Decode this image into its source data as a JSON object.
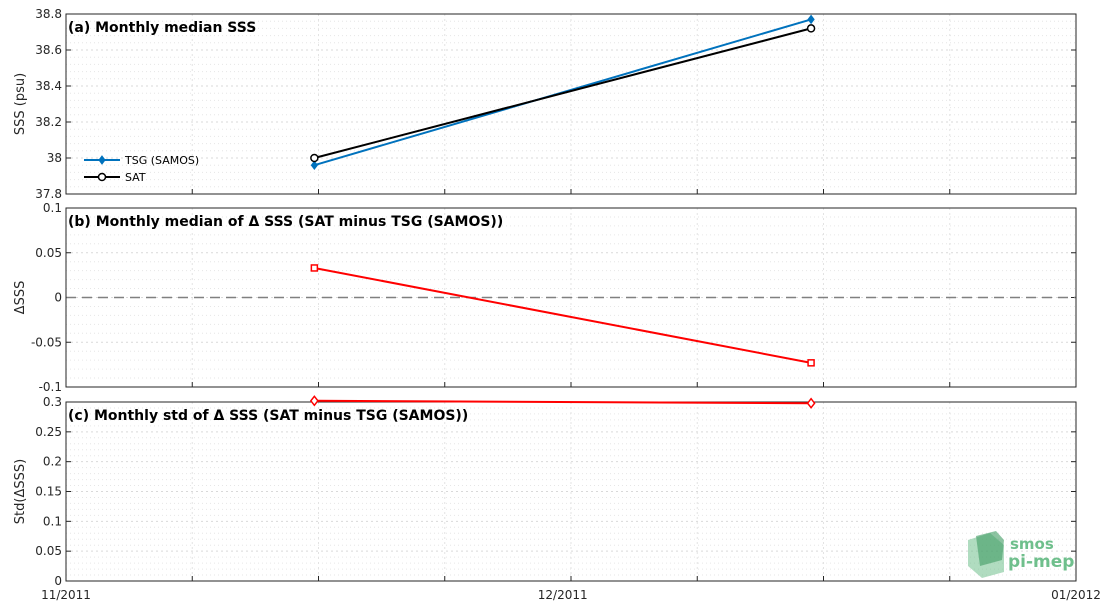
{
  "chart_data": [
    {
      "type": "line",
      "title": "(a) Monthly median SSS",
      "ylabel": "SSS (psu)",
      "ylim": [
        37.8,
        38.8
      ],
      "yticks": [
        "37.8",
        "38",
        "38.2",
        "38.4",
        "38.6",
        "38.8"
      ],
      "grid": true,
      "legend_position": "left",
      "x": [
        "2011-11-16",
        "2011-12-16"
      ],
      "series": [
        {
          "name": "TSG (SAMOS)",
          "color": "#0072bd",
          "marker": "diamond-filled",
          "values": [
            37.96,
            38.77
          ]
        },
        {
          "name": "SAT",
          "color": "#000000",
          "marker": "circle",
          "values": [
            38.0,
            38.72
          ]
        }
      ]
    },
    {
      "type": "line",
      "title": "(b) Monthly median of Δ SSS (SAT minus TSG (SAMOS))",
      "ylabel": "ΔSSS",
      "ylim": [
        -0.1,
        0.1
      ],
      "yticks": [
        "-0.1",
        "-0.05",
        "0",
        "0.05",
        "0.1"
      ],
      "grid": true,
      "zero_line": true,
      "x": [
        "2011-11-16",
        "2011-12-16"
      ],
      "series": [
        {
          "color": "#ff0000",
          "marker": "square",
          "values": [
            0.033,
            -0.073
          ]
        }
      ]
    },
    {
      "type": "line",
      "title": "(c) Monthly std of Δ SSS (SAT minus TSG (SAMOS))",
      "ylabel": "Std(ΔSSS)",
      "ylim": [
        0,
        0.3
      ],
      "yticks": [
        "0",
        "0.05",
        "0.1",
        "0.15",
        "0.2",
        "0.25",
        "0.3"
      ],
      "grid": true,
      "x": [
        "2011-11-16",
        "2011-12-16"
      ],
      "series": [
        {
          "color": "#ff0000",
          "marker": "diamond",
          "values": [
            0.302,
            0.298
          ]
        }
      ]
    }
  ],
  "xaxis": {
    "range": [
      "2011-11-01",
      "2012-01-01"
    ],
    "tick_labels": [
      {
        "date": "2011-11-01",
        "label": "11/2011"
      },
      {
        "date": "2011-12-01",
        "label": "12/2011"
      },
      {
        "date": "2012-01-01",
        "label": "01/2012"
      }
    ]
  },
  "logo": {
    "line1": "smos",
    "line2": "pi-mep",
    "color": "#6fbf8c"
  }
}
